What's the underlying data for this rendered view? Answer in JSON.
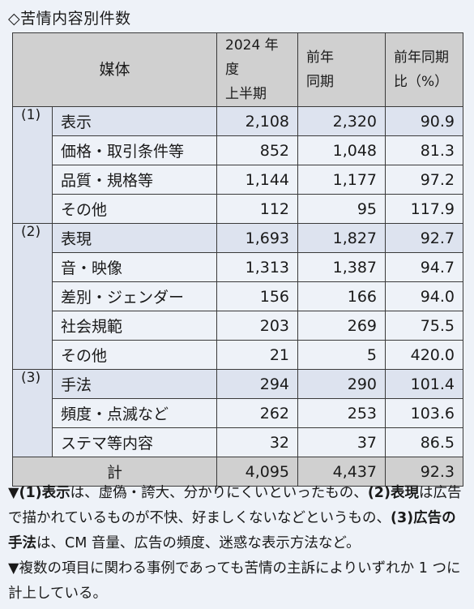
{
  "title": "◇苦情内容別件数",
  "headers": {
    "media": "媒体",
    "cur_line1": "2024 年度",
    "cur_line2": "上半期",
    "prev_line1": "前年",
    "prev_line2": "同期",
    "ratio_line1": "前年同期",
    "ratio_line2": "比（%）"
  },
  "groups": [
    {
      "index": "(1)",
      "label": "表示",
      "cur": "2,108",
      "prev": "2,320",
      "ratio": "90.9",
      "rows": [
        {
          "label": "価格・取引条件等",
          "cur": "852",
          "prev": "1,048",
          "ratio": "81.3"
        },
        {
          "label": "品質・規格等",
          "cur": "1,144",
          "prev": "1,177",
          "ratio": "97.2"
        },
        {
          "label": "その他",
          "cur": "112",
          "prev": "95",
          "ratio": "117.9"
        }
      ]
    },
    {
      "index": "(2)",
      "label": "表現",
      "cur": "1,693",
      "prev": "1,827",
      "ratio": "92.7",
      "rows": [
        {
          "label": "音・映像",
          "cur": "1,313",
          "prev": "1,387",
          "ratio": "94.7"
        },
        {
          "label": "差別・ジェンダー",
          "cur": "156",
          "prev": "166",
          "ratio": "94.0"
        },
        {
          "label": "社会規範",
          "cur": "203",
          "prev": "269",
          "ratio": "75.5"
        },
        {
          "label": "その他",
          "cur": "21",
          "prev": "5",
          "ratio": "420.0"
        }
      ]
    },
    {
      "index": "(3)",
      "label": "手法",
      "cur": "294",
      "prev": "290",
      "ratio": "101.4",
      "rows": [
        {
          "label": "頻度・点滅など",
          "cur": "262",
          "prev": "253",
          "ratio": "103.6"
        },
        {
          "label": "ステマ等内容",
          "cur": "32",
          "prev": "37",
          "ratio": "86.5"
        }
      ]
    }
  ],
  "total": {
    "label": "計",
    "cur": "4,095",
    "prev": "4,437",
    "ratio": "92.3"
  },
  "notes": {
    "n1_mark": "▼",
    "n1_b1": "(1)表示",
    "n1_t1": "は、虚偽・誇大、分かりにくいといったもの、",
    "n1_b2": "(2)表現",
    "n1_t2": "は広告で描かれているものが不快、好ましくないなどというもの、",
    "n1_b3": "(3)広告の手法",
    "n1_t3": "は、CM 音量、広告の頻度、迷惑な表示方法など。",
    "n2": "▼複数の項目に関わる事例であっても苦情の主訴によりいずれか 1 つに計上している。"
  }
}
